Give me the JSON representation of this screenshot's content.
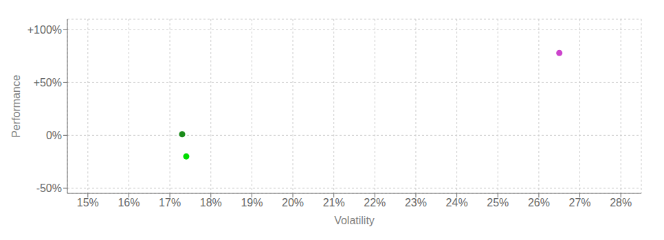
{
  "chart_data": {
    "type": "scatter",
    "xlabel": "Volatility",
    "ylabel": "Performance",
    "x": [
      0.265,
      0.173,
      0.174
    ],
    "values": [
      0.78,
      0.01,
      -0.2
    ],
    "colors": [
      "#cc44cc",
      "#1a8c1a",
      "#00dd00"
    ],
    "xlim": [
      0.145,
      0.285
    ],
    "ylim": [
      -0.55,
      1.1
    ],
    "xticks": [
      {
        "value": 0.15,
        "label": "15%"
      },
      {
        "value": 0.16,
        "label": "16%"
      },
      {
        "value": 0.17,
        "label": "17%"
      },
      {
        "value": 0.18,
        "label": "18%"
      },
      {
        "value": 0.19,
        "label": "19%"
      },
      {
        "value": 0.2,
        "label": "20%"
      },
      {
        "value": 0.21,
        "label": "21%"
      },
      {
        "value": 0.22,
        "label": "22%"
      },
      {
        "value": 0.23,
        "label": "23%"
      },
      {
        "value": 0.24,
        "label": "24%"
      },
      {
        "value": 0.25,
        "label": "25%"
      },
      {
        "value": 0.26,
        "label": "26%"
      },
      {
        "value": 0.27,
        "label": "27%"
      },
      {
        "value": 0.28,
        "label": "28%"
      }
    ],
    "yticks": [
      {
        "value": -0.5,
        "label": "-50%"
      },
      {
        "value": 0.0,
        "label": "0%"
      },
      {
        "value": 0.5,
        "label": "+50%"
      },
      {
        "value": 1.0,
        "label": "+100%"
      }
    ],
    "grid": true
  }
}
